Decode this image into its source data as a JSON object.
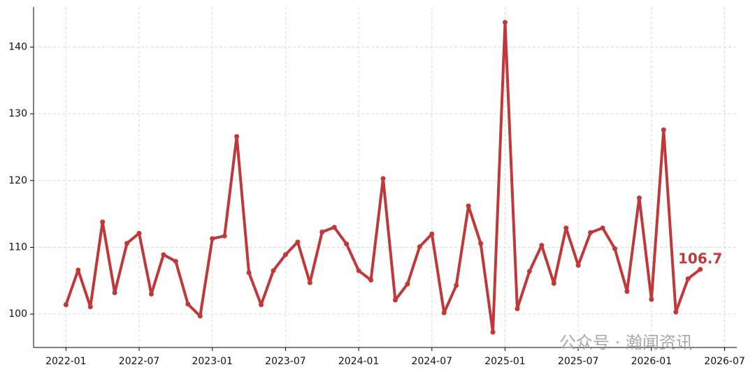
{
  "chart_data": {
    "type": "line",
    "x": [
      "2022-01",
      "2022-02",
      "2022-03",
      "2022-04",
      "2022-05",
      "2022-06",
      "2022-07",
      "2022-08",
      "2022-09",
      "2022-10",
      "2022-11",
      "2022-12",
      "2023-01",
      "2023-02",
      "2023-03",
      "2023-04",
      "2023-05",
      "2023-06",
      "2023-07",
      "2023-08",
      "2023-09",
      "2023-10",
      "2023-11",
      "2023-12",
      "2024-01",
      "2024-02",
      "2024-03",
      "2024-04",
      "2024-05",
      "2024-06",
      "2024-07",
      "2024-08",
      "2024-09",
      "2024-10",
      "2024-11",
      "2024-12",
      "2025-01",
      "2025-02",
      "2025-03",
      "2025-04",
      "2025-05",
      "2025-06",
      "2025-07",
      "2025-08",
      "2025-09",
      "2025-10",
      "2025-11",
      "2025-12",
      "2026-01",
      "2026-02",
      "2026-03",
      "2026-04",
      "2026-05"
    ],
    "series": [
      {
        "color": "#c0383a",
        "values": [
          101.4,
          106.6,
          101.1,
          113.8,
          103.2,
          110.6,
          112.1,
          103.0,
          108.9,
          107.9,
          101.5,
          99.7,
          111.3,
          111.7,
          126.6,
          106.2,
          101.4,
          106.5,
          108.9,
          110.8,
          104.7,
          112.3,
          113.0,
          110.5,
          106.5,
          105.1,
          120.3,
          102.1,
          104.5,
          110.1,
          112.0,
          100.2,
          104.3,
          116.2,
          110.6,
          97.3,
          143.7,
          100.8,
          106.4,
          110.3,
          104.6,
          112.9,
          107.3,
          112.2,
          112.9,
          109.8,
          103.4,
          117.4,
          102.2,
          127.6,
          100.3,
          105.3,
          106.7
        ]
      }
    ],
    "xlim": [
      "2021-10",
      "2026-08"
    ],
    "xticks": [
      "2022-01",
      "2022-07",
      "2023-01",
      "2023-07",
      "2024-01",
      "2024-07",
      "2025-01",
      "2025-07",
      "2026-01",
      "2026-07"
    ],
    "ylim": [
      95,
      146
    ],
    "yticks": [
      100,
      110,
      120,
      130,
      140
    ],
    "grid": true,
    "watermark": "公众号 · 瀚闻资讯"
  }
}
